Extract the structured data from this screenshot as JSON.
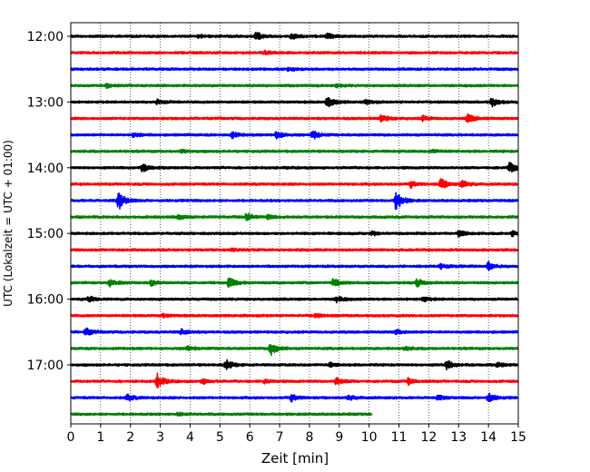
{
  "chart_data": {
    "type": "line",
    "xlabel": "Zeit  [min]",
    "ylabel": "UTC (Lokalzeit = UTC + 01:00)",
    "xlim": [
      0,
      15
    ],
    "x_ticks": [
      "0",
      "1",
      "2",
      "3",
      "4",
      "5",
      "6",
      "7",
      "8",
      "9",
      "10",
      "11",
      "12",
      "13",
      "14",
      "15"
    ],
    "y_ticks": [
      "12:00",
      "13:00",
      "14:00",
      "15:00",
      "16:00",
      "17:00"
    ],
    "grid": "vertical dotted",
    "row_interval_min": 15,
    "color_cycle": [
      "#000000",
      "#ff0000",
      "#0000ff",
      "#008000"
    ],
    "traces": [
      {
        "start": "12:00",
        "color": "#000000",
        "end_min": 15,
        "events": [
          {
            "t": 6.2,
            "a": 9
          },
          {
            "t": 7.4,
            "a": 6
          },
          {
            "t": 8.6,
            "a": 6
          },
          {
            "t": 4.3,
            "a": 3
          }
        ]
      },
      {
        "start": "12:15",
        "color": "#ff0000",
        "end_min": 15,
        "events": [
          {
            "t": 6.5,
            "a": 3
          }
        ]
      },
      {
        "start": "12:30",
        "color": "#0000ff",
        "end_min": 15,
        "events": [
          {
            "t": 7.3,
            "a": 4
          }
        ]
      },
      {
        "start": "12:45",
        "color": "#008000",
        "end_min": 15,
        "events": [
          {
            "t": 1.2,
            "a": 4
          },
          {
            "t": 8.9,
            "a": 3
          }
        ]
      },
      {
        "start": "13:00",
        "color": "#000000",
        "end_min": 15,
        "events": [
          {
            "t": 2.9,
            "a": 5
          },
          {
            "t": 8.6,
            "a": 12
          },
          {
            "t": 14.1,
            "a": 9
          },
          {
            "t": 9.9,
            "a": 4
          }
        ]
      },
      {
        "start": "13:15",
        "color": "#ff0000",
        "end_min": 15,
        "events": [
          {
            "t": 10.4,
            "a": 8
          },
          {
            "t": 11.8,
            "a": 5
          },
          {
            "t": 13.3,
            "a": 9
          }
        ]
      },
      {
        "start": "13:30",
        "color": "#0000ff",
        "end_min": 15,
        "events": [
          {
            "t": 5.4,
            "a": 6
          },
          {
            "t": 6.9,
            "a": 8
          },
          {
            "t": 8.1,
            "a": 9
          },
          {
            "t": 2.1,
            "a": 4
          }
        ]
      },
      {
        "start": "13:45",
        "color": "#008000",
        "end_min": 15,
        "events": [
          {
            "t": 3.7,
            "a": 3
          },
          {
            "t": 12.1,
            "a": 3
          }
        ]
      },
      {
        "start": "14:00",
        "color": "#000000",
        "end_min": 15,
        "events": [
          {
            "t": 2.4,
            "a": 8
          },
          {
            "t": 14.7,
            "a": 11
          }
        ]
      },
      {
        "start": "14:15",
        "color": "#ff0000",
        "end_min": 15,
        "events": [
          {
            "t": 11.4,
            "a": 7
          },
          {
            "t": 12.4,
            "a": 11
          },
          {
            "t": 13.1,
            "a": 8
          }
        ]
      },
      {
        "start": "14:30",
        "color": "#0000ff",
        "end_min": 15,
        "events": [
          {
            "t": 1.6,
            "a": 18
          },
          {
            "t": 10.9,
            "a": 20
          }
        ]
      },
      {
        "start": "14:45",
        "color": "#008000",
        "end_min": 15,
        "events": [
          {
            "t": 5.9,
            "a": 8
          },
          {
            "t": 3.6,
            "a": 4
          },
          {
            "t": 6.6,
            "a": 4
          }
        ]
      },
      {
        "start": "15:00",
        "color": "#000000",
        "end_min": 15,
        "events": [
          {
            "t": 13.0,
            "a": 6
          },
          {
            "t": 14.8,
            "a": 5
          },
          {
            "t": 10.1,
            "a": 3
          }
        ]
      },
      {
        "start": "15:15",
        "color": "#ff0000",
        "end_min": 15,
        "events": [
          {
            "t": 5.4,
            "a": 3
          }
        ]
      },
      {
        "start": "15:30",
        "color": "#0000ff",
        "end_min": 15,
        "events": [
          {
            "t": 14.0,
            "a": 8
          },
          {
            "t": 12.4,
            "a": 4
          }
        ]
      },
      {
        "start": "15:45",
        "color": "#008000",
        "end_min": 15,
        "events": [
          {
            "t": 1.3,
            "a": 7
          },
          {
            "t": 5.3,
            "a": 10
          },
          {
            "t": 8.8,
            "a": 8
          },
          {
            "t": 11.6,
            "a": 7
          },
          {
            "t": 2.7,
            "a": 5
          }
        ]
      },
      {
        "start": "16:00",
        "color": "#000000",
        "end_min": 15,
        "events": [
          {
            "t": 0.6,
            "a": 5
          },
          {
            "t": 8.9,
            "a": 6
          },
          {
            "t": 11.8,
            "a": 5
          }
        ]
      },
      {
        "start": "16:15",
        "color": "#ff0000",
        "end_min": 15,
        "events": [
          {
            "t": 3.1,
            "a": 3
          },
          {
            "t": 8.2,
            "a": 3
          }
        ]
      },
      {
        "start": "16:30",
        "color": "#0000ff",
        "end_min": 15,
        "events": [
          {
            "t": 0.5,
            "a": 8
          },
          {
            "t": 3.7,
            "a": 5
          },
          {
            "t": 10.9,
            "a": 4
          }
        ]
      },
      {
        "start": "16:45",
        "color": "#008000",
        "end_min": 15,
        "events": [
          {
            "t": 6.7,
            "a": 14
          },
          {
            "t": 3.9,
            "a": 4
          },
          {
            "t": 11.2,
            "a": 3
          }
        ]
      },
      {
        "start": "17:00",
        "color": "#000000",
        "end_min": 15,
        "events": [
          {
            "t": 5.2,
            "a": 10
          },
          {
            "t": 12.6,
            "a": 9
          },
          {
            "t": 8.7,
            "a": 4
          },
          {
            "t": 14.3,
            "a": 4
          }
        ]
      },
      {
        "start": "17:15",
        "color": "#ff0000",
        "end_min": 15,
        "events": [
          {
            "t": 2.9,
            "a": 14
          },
          {
            "t": 8.9,
            "a": 8
          },
          {
            "t": 11.3,
            "a": 6
          },
          {
            "t": 4.4,
            "a": 5
          },
          {
            "t": 6.5,
            "a": 4
          }
        ]
      },
      {
        "start": "17:30",
        "color": "#0000ff",
        "end_min": 15,
        "events": [
          {
            "t": 1.9,
            "a": 6
          },
          {
            "t": 7.4,
            "a": 8
          },
          {
            "t": 14.0,
            "a": 9
          },
          {
            "t": 9.3,
            "a": 5
          },
          {
            "t": 12.3,
            "a": 4
          }
        ]
      },
      {
        "start": "17:45",
        "color": "#008000",
        "end_min": 10.1,
        "events": [
          {
            "t": 3.6,
            "a": 3
          }
        ]
      }
    ]
  }
}
